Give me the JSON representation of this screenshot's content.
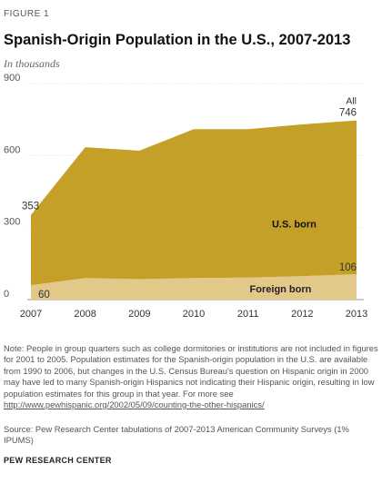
{
  "figure_label": "FIGURE 1",
  "title": "Spanish-Origin Population in the U.S., 2007-2013",
  "subtitle": "In thousands",
  "chart_data": {
    "type": "area",
    "stacked": true,
    "x": [
      "2007",
      "2008",
      "2009",
      "2010",
      "2011",
      "2012",
      "2013"
    ],
    "ylim": [
      0,
      900
    ],
    "yticks": [
      "0",
      "300",
      "600",
      "900"
    ],
    "grid": true,
    "series": [
      {
        "name": "Foreign born",
        "values": [
          60,
          90,
          85,
          90,
          92,
          98,
          106
        ],
        "color": "#e2c98a",
        "label_color": "#222222"
      },
      {
        "name": "U.S. born",
        "values": [
          293,
          545,
          535,
          620,
          618,
          632,
          640
        ],
        "color": "#c4a028",
        "label_color": "#111111"
      }
    ],
    "total_label": "All",
    "annotations": [
      {
        "text": "353",
        "x": "2007",
        "y": 353
      },
      {
        "text": "746",
        "x": "2013",
        "y": 746
      },
      {
        "text": "60",
        "x": "2007",
        "y": 60
      },
      {
        "text": "106",
        "x": "2013",
        "y": 106
      }
    ]
  },
  "note": {
    "text": "Note: People in group quarters such as college dormitories or institutions are not included in figures for 2001 to 2005. Population estimates for the Spanish-origin population in the U.S. are available from 1990 to 2006, but changes in the U.S. Census Bureau's question on Hispanic origin in 2000 may have led to many Spanish-origin Hispanics not indicating their Hispanic origin, resulting in low population estimates for this group in that year. For more see",
    "link": "http://www.pewhispanic.org/2002/05/09/counting-the-other-hispanics/"
  },
  "source": "Source: Pew Research Center tabulations of 2007-2013 American Community Surveys (1% IPUMS)",
  "org": "PEW RESEARCH CENTER"
}
